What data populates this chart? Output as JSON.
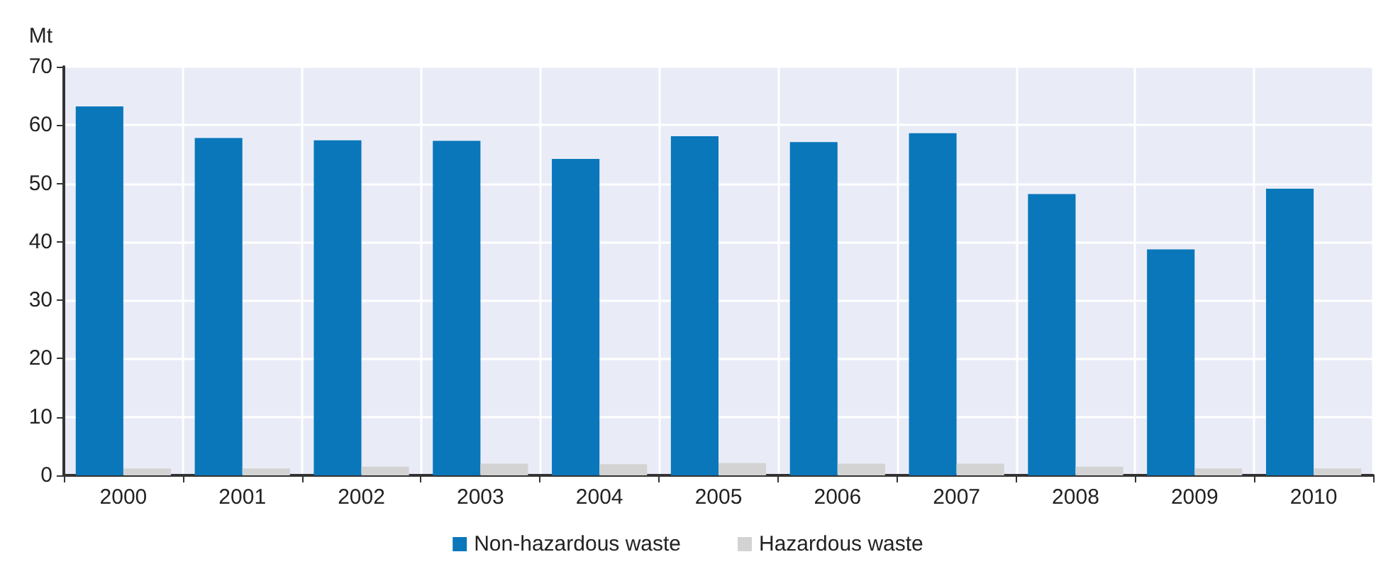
{
  "chart_data": {
    "type": "bar",
    "ylabel": "Mt",
    "categories": [
      "2000",
      "2001",
      "2002",
      "2003",
      "2004",
      "2005",
      "2006",
      "2007",
      "2008",
      "2009",
      "2010"
    ],
    "series": [
      {
        "name": "Non-hazardous waste",
        "color": "#0a77bb",
        "values": [
          63.2,
          57.8,
          57.4,
          57.3,
          54.2,
          58.1,
          57.1,
          58.6,
          48.2,
          38.7,
          49.1
        ]
      },
      {
        "name": "Hazardous waste",
        "color": "#d3d3d3",
        "values": [
          1.2,
          1.2,
          1.5,
          2.0,
          1.9,
          2.1,
          2.0,
          2.0,
          1.5,
          1.2,
          1.2
        ]
      }
    ],
    "ylim": [
      0,
      70
    ],
    "yticks": [
      0,
      10,
      20,
      30,
      40,
      50,
      60,
      70
    ],
    "grid": true,
    "legend": "bottom"
  }
}
